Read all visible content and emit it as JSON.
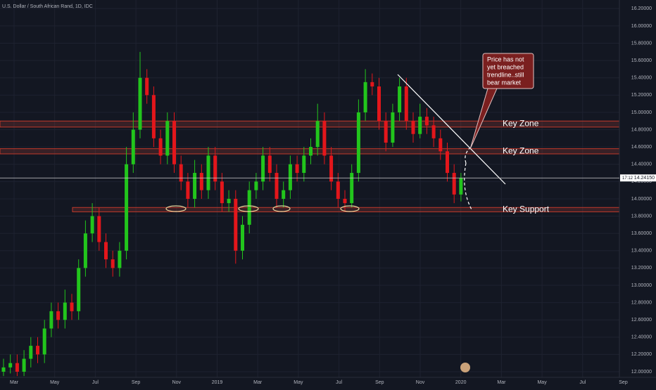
{
  "chart_data": {
    "type": "candlestick",
    "title": "U.S. Dollar / South African Rand, 1D, IDC",
    "up_color": "#22c51c",
    "down_color": "#e3161b",
    "open": [
      12.0,
      12.05,
      12.1,
      12.0,
      12.15,
      12.3,
      12.2,
      12.5,
      12.7,
      12.6,
      12.8,
      12.7,
      13.2,
      13.6,
      13.8,
      13.5,
      13.3,
      13.2,
      13.4,
      14.4,
      14.8,
      15.4,
      15.2,
      14.7,
      14.5,
      14.9,
      14.4,
      14.2,
      14.0,
      14.3,
      14.1,
      14.5,
      14.2,
      13.95,
      14.0,
      13.4,
      13.7,
      14.1,
      14.2,
      14.5,
      14.3,
      14.0,
      14.1,
      14.4,
      14.3,
      14.5,
      14.6,
      14.9,
      14.5,
      14.2,
      14.0,
      13.95,
      14.3,
      15.0,
      15.35,
      15.3,
      14.9,
      14.65,
      15.0,
      15.3,
      14.9,
      14.75,
      14.95,
      14.85,
      14.7,
      14.55,
      14.3,
      14.05
    ],
    "high": [
      12.15,
      12.2,
      12.2,
      12.25,
      12.4,
      12.4,
      12.6,
      12.8,
      12.8,
      12.95,
      12.9,
      13.3,
      13.75,
      13.95,
      13.9,
      13.6,
      13.4,
      13.5,
      14.6,
      15.0,
      15.7,
      15.5,
      15.3,
      14.8,
      15.0,
      15.0,
      14.5,
      14.3,
      14.45,
      14.4,
      14.6,
      14.6,
      14.3,
      14.1,
      14.1,
      13.8,
      14.2,
      14.3,
      14.6,
      14.6,
      14.4,
      14.2,
      14.5,
      14.5,
      14.6,
      14.7,
      15.1,
      15.0,
      14.6,
      14.3,
      14.1,
      14.4,
      15.15,
      15.5,
      15.45,
      15.4,
      15.0,
      15.1,
      15.4,
      15.4,
      15.0,
      15.1,
      15.05,
      14.95,
      14.8,
      14.65,
      14.4,
      14.3
    ],
    "low": [
      11.95,
      11.98,
      11.95,
      11.95,
      12.05,
      12.1,
      12.1,
      12.4,
      12.5,
      12.5,
      12.6,
      12.6,
      13.1,
      13.5,
      13.4,
      13.2,
      13.1,
      13.1,
      13.3,
      14.3,
      14.7,
      15.1,
      14.6,
      14.4,
      14.4,
      14.3,
      14.1,
      13.9,
      13.9,
      14.0,
      14.0,
      14.1,
      13.85,
      13.85,
      13.25,
      13.3,
      13.6,
      14.0,
      14.1,
      14.2,
      13.9,
      13.9,
      14.0,
      14.2,
      14.2,
      14.4,
      14.5,
      14.4,
      14.1,
      13.9,
      13.85,
      13.9,
      14.2,
      14.9,
      15.2,
      14.8,
      14.55,
      14.6,
      14.9,
      14.8,
      14.65,
      14.7,
      14.75,
      14.6,
      14.45,
      14.2,
      13.95,
      13.97
    ],
    "close": [
      12.05,
      12.1,
      12.0,
      12.15,
      12.3,
      12.2,
      12.5,
      12.7,
      12.6,
      12.8,
      12.7,
      13.2,
      13.6,
      13.8,
      13.5,
      13.3,
      13.2,
      13.4,
      14.4,
      14.8,
      15.4,
      15.2,
      14.7,
      14.5,
      14.9,
      14.4,
      14.2,
      14.0,
      14.3,
      14.1,
      14.5,
      14.2,
      13.95,
      14.0,
      13.4,
      13.7,
      14.1,
      14.2,
      14.5,
      14.3,
      14.0,
      14.1,
      14.4,
      14.3,
      14.5,
      14.6,
      14.9,
      14.5,
      14.2,
      14.0,
      13.95,
      14.3,
      15.0,
      15.35,
      15.3,
      14.9,
      14.65,
      15.0,
      15.3,
      14.9,
      14.75,
      14.95,
      14.85,
      14.7,
      14.55,
      14.3,
      14.05,
      14.24
    ],
    "x_labels": [
      "Mar",
      "May",
      "Jul",
      "Sep",
      "Nov",
      "2019",
      "Mar",
      "May",
      "Jul",
      "Sep",
      "Nov",
      "2020",
      "Mar",
      "May",
      "Jul",
      "Sep"
    ],
    "ylim": [
      11.935,
      16.3
    ],
    "yticks": [
      {
        "value": 12.0,
        "label": "12.00000"
      },
      {
        "value": 12.2,
        "label": "12.20000"
      },
      {
        "value": 12.4,
        "label": "12.40000"
      },
      {
        "value": 12.6,
        "label": "12.60000"
      },
      {
        "value": 12.8,
        "label": "12.80000"
      },
      {
        "value": 13.0,
        "label": "13.00000"
      },
      {
        "value": 13.2,
        "label": "13.20000"
      },
      {
        "value": 13.4,
        "label": "13.40000"
      },
      {
        "value": 13.6,
        "label": "13.60000"
      },
      {
        "value": 13.8,
        "label": "13.80000"
      },
      {
        "value": 14.0,
        "label": "14.00000"
      },
      {
        "value": 14.2,
        "label": "14.20000"
      },
      {
        "value": 14.4,
        "label": "14.40000"
      },
      {
        "value": 14.6,
        "label": "14.60000"
      },
      {
        "value": 14.8,
        "label": "14.80000"
      },
      {
        "value": 15.0,
        "label": "15.00000"
      },
      {
        "value": 15.2,
        "label": "15.20000"
      },
      {
        "value": 15.4,
        "label": "15.40000"
      },
      {
        "value": 15.6,
        "label": "15.60000"
      },
      {
        "value": 15.8,
        "label": "15.80000"
      },
      {
        "value": 16.0,
        "label": "16.00000"
      },
      {
        "value": 16.2,
        "label": "16.20000"
      }
    ],
    "grid": true,
    "last_price": {
      "value": 14.2415,
      "label": "14.24150"
    },
    "countdown": "17:12",
    "zones": [
      {
        "label": "Key Zone",
        "top": 14.9,
        "bottom": 14.83
      },
      {
        "label": "Key Zone",
        "top": 14.58,
        "bottom": 14.52
      },
      {
        "label": "Key Support",
        "top": 13.9,
        "bottom": 13.85
      }
    ],
    "callout": [
      "Price has not",
      "yet breached",
      "trendline..still",
      "bear market"
    ]
  }
}
